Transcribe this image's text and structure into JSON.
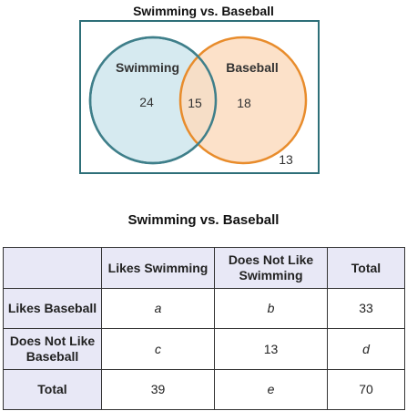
{
  "venn": {
    "title": "Swimming vs. Baseball",
    "left_set": {
      "label": "Swimming",
      "only_value": "24",
      "color": "#3f7f8a",
      "fill": "#d6eaf0"
    },
    "right_set": {
      "label": "Baseball",
      "only_value": "18",
      "color": "#e88c2c",
      "fill": "#fbdcc0"
    },
    "overlap_value": "15",
    "outside_value": "13",
    "frame_color": "#2e6f78"
  },
  "table": {
    "title": "Swimming vs. Baseball",
    "column_headers": [
      "Likes Swimming",
      "Does Not Like Swimming",
      "Total"
    ],
    "rows": [
      {
        "header": "Likes Baseball",
        "cells": [
          "a",
          "b",
          "33"
        ]
      },
      {
        "header": "Does Not Like Baseball",
        "cells": [
          "c",
          "13",
          "d"
        ]
      },
      {
        "header": "Total",
        "cells": [
          "39",
          "e",
          "70"
        ]
      }
    ],
    "header_fill": "#e8e8f6"
  }
}
